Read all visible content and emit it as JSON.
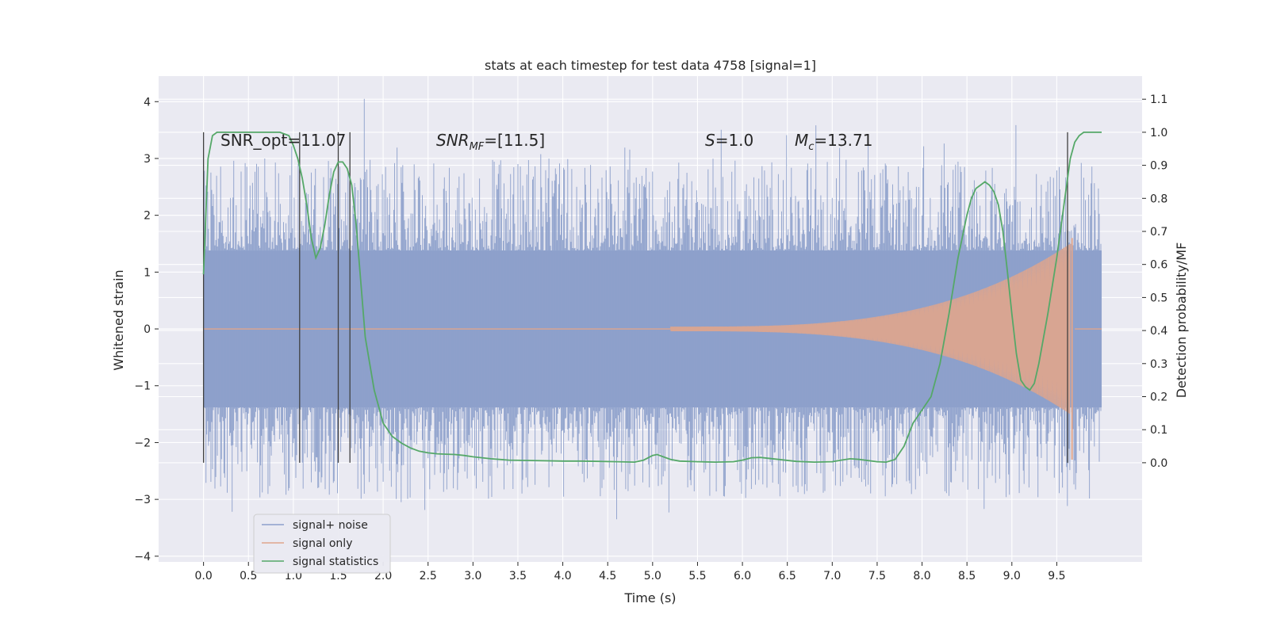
{
  "chart_data": {
    "type": "line",
    "title": "stats at each timestep for test data 4758 [signal=1]",
    "xlabel": "Time (s)",
    "ylabel": "Whitened strain",
    "ylabel_right": "Detection probability/MF",
    "xlim": [
      -0.5,
      10.45
    ],
    "ylim": [
      -4.1,
      4.45
    ],
    "ylim_right": [
      -0.3,
      1.17
    ],
    "x_ticks": [
      0.0,
      0.5,
      1.0,
      1.5,
      2.0,
      2.5,
      3.0,
      3.5,
      4.0,
      4.5,
      5.0,
      5.5,
      6.0,
      6.5,
      7.0,
      7.5,
      8.0,
      8.5,
      9.0,
      9.5
    ],
    "y_ticks": [
      -4,
      -3,
      -2,
      -1,
      0,
      1,
      2,
      3,
      4
    ],
    "y_ticks_right": [
      0.0,
      0.1,
      0.2,
      0.3,
      0.4,
      0.5,
      0.6,
      0.7,
      0.8,
      0.9,
      1.0,
      1.1
    ],
    "grid": true,
    "legend_position": "lower-left",
    "annotations": {
      "snr_opt": "SNR_opt=11.07",
      "snr_mf_sym": "SNR",
      "snr_mf_sub": "MF",
      "snr_mf_val": "=[11.5]",
      "s_sym": "S",
      "s_val": "=1.0",
      "mc_sym": "M",
      "mc_sub": "c",
      "mc_val": "=13.71"
    },
    "vertical_markers": [
      0.0,
      1.07,
      1.5,
      1.63,
      9.62
    ],
    "series": [
      {
        "name": "signal+ noise",
        "color": "#8da0cb",
        "noise_envelope": {
          "core": 1.38,
          "peak_typical": 2.4,
          "max": 4.05,
          "min": -3.35
        }
      },
      {
        "name": "signal only",
        "color": "#e0a58c",
        "chirp": {
          "start": 5.2,
          "merger": 9.65,
          "peak_amplitude": 1.5
        }
      },
      {
        "name": "signal statistics",
        "color": "#55a868",
        "x": [
          0.0,
          0.05,
          0.1,
          0.15,
          0.2,
          0.3,
          0.5,
          0.7,
          0.85,
          0.95,
          1.0,
          1.05,
          1.1,
          1.15,
          1.2,
          1.25,
          1.3,
          1.35,
          1.4,
          1.45,
          1.5,
          1.55,
          1.6,
          1.65,
          1.7,
          1.75,
          1.8,
          1.9,
          2.0,
          2.1,
          2.2,
          2.3,
          2.4,
          2.5,
          2.6,
          2.7,
          2.8,
          2.9,
          3.0,
          3.2,
          3.4,
          3.6,
          3.8,
          4.0,
          4.2,
          4.4,
          4.6,
          4.8,
          4.9,
          5.0,
          5.05,
          5.1,
          5.2,
          5.3,
          5.5,
          5.7,
          5.9,
          6.0,
          6.1,
          6.2,
          6.4,
          6.6,
          6.8,
          7.0,
          7.1,
          7.2,
          7.3,
          7.5,
          7.6,
          7.7,
          7.8,
          7.9,
          8.0,
          8.1,
          8.2,
          8.3,
          8.4,
          8.5,
          8.55,
          8.6,
          8.65,
          8.7,
          8.75,
          8.8,
          8.85,
          8.9,
          8.95,
          9.0,
          9.05,
          9.1,
          9.15,
          9.2,
          9.25,
          9.3,
          9.4,
          9.5,
          9.6,
          9.65,
          9.7,
          9.75,
          9.8,
          9.9,
          10.0
        ],
        "y": [
          0.57,
          0.92,
          0.99,
          1.0,
          1.0,
          1.0,
          1.0,
          1.0,
          1.0,
          0.99,
          0.96,
          0.92,
          0.86,
          0.78,
          0.68,
          0.62,
          0.65,
          0.72,
          0.81,
          0.88,
          0.91,
          0.91,
          0.89,
          0.84,
          0.72,
          0.55,
          0.38,
          0.22,
          0.12,
          0.08,
          0.06,
          0.045,
          0.035,
          0.03,
          0.027,
          0.026,
          0.025,
          0.022,
          0.018,
          0.012,
          0.008,
          0.007,
          0.006,
          0.005,
          0.005,
          0.004,
          0.003,
          0.002,
          0.008,
          0.022,
          0.025,
          0.02,
          0.01,
          0.005,
          0.003,
          0.002,
          0.003,
          0.008,
          0.015,
          0.016,
          0.01,
          0.004,
          0.002,
          0.003,
          0.008,
          0.012,
          0.01,
          0.003,
          0.002,
          0.01,
          0.05,
          0.12,
          0.16,
          0.2,
          0.3,
          0.45,
          0.62,
          0.75,
          0.8,
          0.83,
          0.84,
          0.85,
          0.84,
          0.82,
          0.78,
          0.7,
          0.58,
          0.45,
          0.33,
          0.25,
          0.23,
          0.22,
          0.24,
          0.3,
          0.45,
          0.62,
          0.82,
          0.92,
          0.97,
          0.99,
          1.0,
          1.0,
          1.0
        ]
      }
    ]
  }
}
